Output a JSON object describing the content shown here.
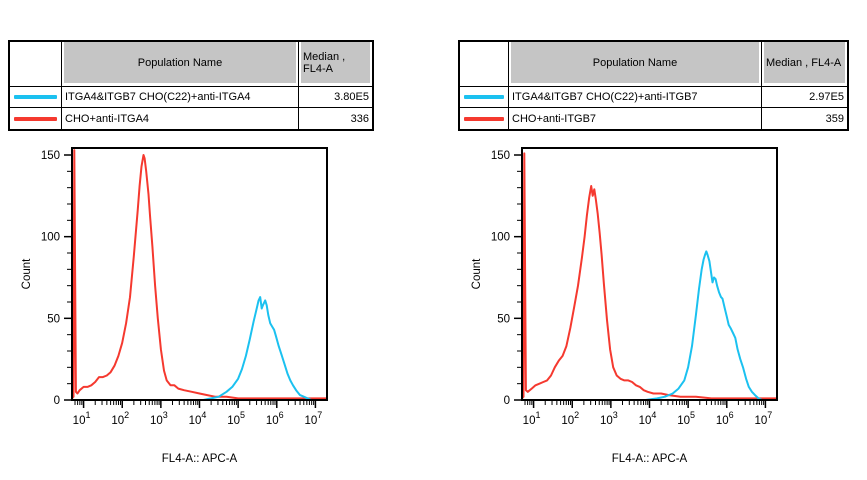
{
  "colors": {
    "cyan": "#1bc1f0",
    "red": "#f5392f",
    "table_header_bg": "#c5c5c5",
    "axis": "#000000"
  },
  "tables": [
    {
      "headers": {
        "name": "Population Name",
        "median_line1": "Median ,",
        "median_line2": "FL4-A"
      },
      "rows": [
        {
          "name": "ITGA4&ITGB7 CHO(C22)+anti-ITGA4",
          "median": "3.80E5",
          "color": "#1bc1f0"
        },
        {
          "name": "CHO+anti-ITGA4",
          "median": "336",
          "color": "#f5392f"
        }
      ]
    },
    {
      "headers": {
        "name": "Population Name",
        "median_line1": "Median , FL4-A",
        "median_line2": ""
      },
      "rows": [
        {
          "name": "ITGA4&ITGB7 CHO(C22)+anti-ITGB7",
          "median": "2.97E5",
          "color": "#1bc1f0"
        },
        {
          "name": "CHO+anti-ITGB7",
          "median": "359",
          "color": "#f5392f"
        }
      ]
    }
  ],
  "chart_data": [
    {
      "type": "line",
      "subtype": "flow-cytometry-histogram",
      "xlabel": "FL4-A:: APC-A",
      "ylabel": "Count",
      "x_scale": "log10",
      "x_range_log": [
        0.7,
        7.3
      ],
      "x_tick_base": "10",
      "x_tick_exponents": [
        1,
        2,
        3,
        4,
        5,
        6,
        7
      ],
      "ylim": [
        0,
        155
      ],
      "y_ticks": [
        0,
        50,
        100,
        150
      ],
      "y_minor_step": 10,
      "grid": false,
      "legend_position": "table-above",
      "series": [
        {
          "name": "CHO+anti-ITGA4",
          "color": "#f5392f",
          "median_fl4a": "336",
          "points_logx_count": [
            [
              0.7,
              1
            ],
            [
              0.74,
              2
            ],
            [
              0.76,
              153
            ],
            [
              0.8,
              5
            ],
            [
              0.84,
              4
            ],
            [
              0.9,
              6
            ],
            [
              1.0,
              8
            ],
            [
              1.1,
              8
            ],
            [
              1.2,
              9
            ],
            [
              1.3,
              11
            ],
            [
              1.4,
              14
            ],
            [
              1.5,
              14
            ],
            [
              1.6,
              15
            ],
            [
              1.7,
              17
            ],
            [
              1.8,
              21
            ],
            [
              1.9,
              27
            ],
            [
              2.0,
              35
            ],
            [
              2.1,
              47
            ],
            [
              2.2,
              63
            ],
            [
              2.3,
              88
            ],
            [
              2.4,
              116
            ],
            [
              2.45,
              131
            ],
            [
              2.5,
              143
            ],
            [
              2.55,
              150
            ],
            [
              2.58,
              148
            ],
            [
              2.62,
              140
            ],
            [
              2.68,
              126
            ],
            [
              2.72,
              113
            ],
            [
              2.78,
              94
            ],
            [
              2.85,
              70
            ],
            [
              2.92,
              50
            ],
            [
              3.0,
              31
            ],
            [
              3.08,
              18
            ],
            [
              3.15,
              12
            ],
            [
              3.25,
              9
            ],
            [
              3.35,
              9
            ],
            [
              3.45,
              7
            ],
            [
              3.6,
              6
            ],
            [
              3.8,
              5
            ],
            [
              4.0,
              4
            ],
            [
              4.2,
              3
            ],
            [
              4.4,
              2
            ],
            [
              4.7,
              2
            ],
            [
              5.0,
              1
            ],
            [
              5.5,
              1
            ],
            [
              6.0,
              1
            ],
            [
              6.5,
              1
            ],
            [
              7.0,
              1
            ],
            [
              7.3,
              1
            ]
          ]
        },
        {
          "name": "ITGA4&ITGB7 CHO(C22)+anti-ITGA4",
          "color": "#1bc1f0",
          "median_fl4a": "3.80E5",
          "points_logx_count": [
            [
              0.7,
              0
            ],
            [
              3.8,
              0
            ],
            [
              4.1,
              0
            ],
            [
              4.3,
              1
            ],
            [
              4.5,
              2
            ],
            [
              4.7,
              5
            ],
            [
              4.85,
              8
            ],
            [
              5.0,
              13
            ],
            [
              5.1,
              19
            ],
            [
              5.2,
              27
            ],
            [
              5.3,
              37
            ],
            [
              5.4,
              48
            ],
            [
              5.48,
              56
            ],
            [
              5.53,
              61
            ],
            [
              5.57,
              63
            ],
            [
              5.61,
              56
            ],
            [
              5.64,
              58
            ],
            [
              5.7,
              61
            ],
            [
              5.74,
              58
            ],
            [
              5.78,
              52
            ],
            [
              5.83,
              47
            ],
            [
              5.88,
              45
            ],
            [
              5.93,
              43
            ],
            [
              5.98,
              39
            ],
            [
              6.05,
              33
            ],
            [
              6.12,
              28
            ],
            [
              6.2,
              22
            ],
            [
              6.28,
              16
            ],
            [
              6.35,
              12
            ],
            [
              6.42,
              9
            ],
            [
              6.5,
              6
            ],
            [
              6.6,
              3
            ],
            [
              6.7,
              2
            ],
            [
              6.8,
              1
            ],
            [
              6.9,
              0
            ],
            [
              7.3,
              0
            ]
          ]
        }
      ]
    },
    {
      "type": "line",
      "subtype": "flow-cytometry-histogram",
      "xlabel": "FL4-A:: APC-A",
      "ylabel": "Count",
      "x_scale": "log10",
      "x_range_log": [
        0.7,
        7.3
      ],
      "x_tick_base": "10",
      "x_tick_exponents": [
        1,
        2,
        3,
        4,
        5,
        6,
        7
      ],
      "ylim": [
        0,
        155
      ],
      "y_ticks": [
        0,
        50,
        100,
        150
      ],
      "y_minor_step": 10,
      "grid": false,
      "legend_position": "table-above",
      "series": [
        {
          "name": "CHO+anti-ITGB7",
          "color": "#f5392f",
          "median_fl4a": "359",
          "points_logx_count": [
            [
              0.7,
              1
            ],
            [
              0.74,
              2
            ],
            [
              0.76,
              151
            ],
            [
              0.8,
              6
            ],
            [
              0.85,
              5
            ],
            [
              0.95,
              7
            ],
            [
              1.05,
              9
            ],
            [
              1.15,
              10
            ],
            [
              1.25,
              11
            ],
            [
              1.35,
              12
            ],
            [
              1.45,
              15
            ],
            [
              1.55,
              20
            ],
            [
              1.65,
              24
            ],
            [
              1.75,
              27
            ],
            [
              1.85,
              33
            ],
            [
              1.95,
              44
            ],
            [
              2.05,
              57
            ],
            [
              2.15,
              70
            ],
            [
              2.25,
              87
            ],
            [
              2.32,
              100
            ],
            [
              2.38,
              113
            ],
            [
              2.44,
              124
            ],
            [
              2.49,
              131
            ],
            [
              2.53,
              125
            ],
            [
              2.57,
              129
            ],
            [
              2.61,
              123
            ],
            [
              2.66,
              114
            ],
            [
              2.71,
              102
            ],
            [
              2.76,
              89
            ],
            [
              2.82,
              71
            ],
            [
              2.9,
              49
            ],
            [
              2.98,
              31
            ],
            [
              3.06,
              20
            ],
            [
              3.15,
              15
            ],
            [
              3.25,
              13
            ],
            [
              3.35,
              12
            ],
            [
              3.45,
              12
            ],
            [
              3.55,
              11
            ],
            [
              3.65,
              9
            ],
            [
              3.75,
              8
            ],
            [
              3.85,
              6
            ],
            [
              3.95,
              5
            ],
            [
              4.1,
              4
            ],
            [
              4.3,
              4
            ],
            [
              4.5,
              3
            ],
            [
              4.8,
              2
            ],
            [
              5.2,
              2
            ],
            [
              5.6,
              1
            ],
            [
              6.0,
              1
            ],
            [
              6.5,
              1
            ],
            [
              7.0,
              1
            ],
            [
              7.3,
              1
            ]
          ]
        },
        {
          "name": "ITGA4&ITGB7 CHO(C22)+anti-ITGB7",
          "color": "#1bc1f0",
          "median_fl4a": "2.97E5",
          "points_logx_count": [
            [
              0.7,
              0
            ],
            [
              3.9,
              0
            ],
            [
              4.2,
              1
            ],
            [
              4.4,
              2
            ],
            [
              4.6,
              4
            ],
            [
              4.75,
              7
            ],
            [
              4.9,
              12
            ],
            [
              5.0,
              20
            ],
            [
              5.1,
              33
            ],
            [
              5.2,
              52
            ],
            [
              5.28,
              68
            ],
            [
              5.35,
              80
            ],
            [
              5.4,
              86
            ],
            [
              5.44,
              89
            ],
            [
              5.47,
              91
            ],
            [
              5.5,
              89
            ],
            [
              5.55,
              85
            ],
            [
              5.6,
              77
            ],
            [
              5.63,
              72
            ],
            [
              5.67,
              75
            ],
            [
              5.71,
              74
            ],
            [
              5.75,
              70
            ],
            [
              5.8,
              66
            ],
            [
              5.85,
              63
            ],
            [
              5.89,
              62
            ],
            [
              5.95,
              56
            ],
            [
              6.0,
              51
            ],
            [
              6.05,
              46
            ],
            [
              6.1,
              44
            ],
            [
              6.16,
              41
            ],
            [
              6.22,
              38
            ],
            [
              6.28,
              31
            ],
            [
              6.35,
              25
            ],
            [
              6.42,
              20
            ],
            [
              6.5,
              13
            ],
            [
              6.57,
              8
            ],
            [
              6.65,
              5
            ],
            [
              6.73,
              3
            ],
            [
              6.82,
              1
            ],
            [
              6.92,
              0
            ],
            [
              7.3,
              0
            ]
          ]
        }
      ]
    }
  ]
}
